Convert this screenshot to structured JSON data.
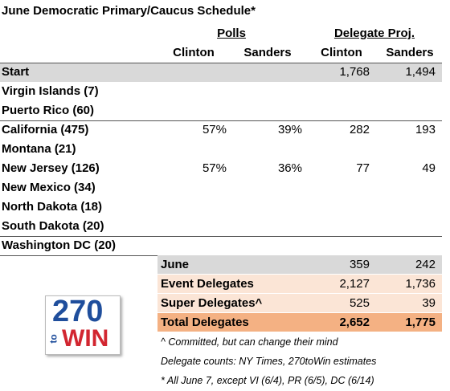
{
  "title": "June Democratic Primary/Caucus Schedule*",
  "header": {
    "groups": [
      "Polls",
      "Delegate Proj."
    ],
    "columns": [
      "Clinton",
      "Sanders",
      "Clinton",
      "Sanders"
    ]
  },
  "rows": [
    {
      "label": "Start",
      "delegates": [
        "1,768",
        "1,494"
      ]
    },
    {
      "label": "Virgin Islands (7)"
    },
    {
      "label": "Puerto Rico (60)"
    },
    {
      "label": "California (475)",
      "polls": [
        "57%",
        "39%"
      ],
      "delegates": [
        "282",
        "193"
      ]
    },
    {
      "label": "Montana (21)"
    },
    {
      "label": "New Jersey (126)",
      "polls": [
        "57%",
        "36%"
      ],
      "delegates": [
        "77",
        "49"
      ]
    },
    {
      "label": "New Mexico (34)"
    },
    {
      "label": "North Dakota (18)"
    },
    {
      "label": "South Dakota (20)"
    },
    {
      "label": "Washington DC (20)"
    }
  ],
  "summary": [
    {
      "label": "June",
      "values": [
        "359",
        "242"
      ]
    },
    {
      "label": "Event Delegates",
      "values": [
        "2,127",
        "1,736"
      ]
    },
    {
      "label": "Super Delegates^",
      "values": [
        "525",
        "39"
      ]
    },
    {
      "label": "Total Delegates",
      "values": [
        "2,652",
        "1,775"
      ]
    }
  ],
  "notes": [
    "^ Committed, but can change their mind",
    "Delegate counts: NY Times, 270toWin estimates",
    "* All June 7, except VI (6/4), PR (6/5), DC (6/14)"
  ],
  "logo": {
    "number": "270",
    "to": "to",
    "win": "WIN"
  }
}
